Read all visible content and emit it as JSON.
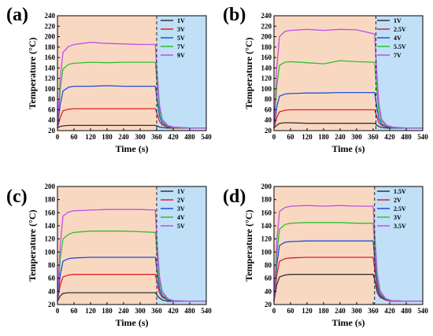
{
  "chart_data": [
    {
      "type": "line",
      "panel_label": "(a)",
      "xlabel": "Time (s)",
      "ylabel": "Temperature (°C)",
      "xlim": [
        0,
        540
      ],
      "ylim": [
        20,
        240
      ],
      "xticks": [
        0,
        60,
        120,
        180,
        240,
        300,
        360,
        420,
        480,
        540
      ],
      "yticks": [
        20,
        40,
        60,
        80,
        100,
        120,
        140,
        160,
        180,
        200,
        220,
        240
      ],
      "shaded_regions": [
        {
          "from": 0,
          "to": 360,
          "color": "#f9d8c2"
        },
        {
          "from": 360,
          "to": 540,
          "color": "#bfe0f7"
        }
      ],
      "divider_x": 360,
      "legend_position": "top-right",
      "series": [
        {
          "name": "1V",
          "color": "#333333",
          "x": [
            0,
            10,
            20,
            40,
            60,
            120,
            180,
            240,
            300,
            355,
            360,
            370,
            380,
            400,
            420,
            480,
            540
          ],
          "y": [
            25,
            28,
            29,
            30,
            30,
            30,
            30,
            30,
            30,
            30,
            29,
            27,
            26,
            25,
            25,
            25,
            25
          ]
        },
        {
          "name": "3V",
          "color": "#e02020",
          "x": [
            0,
            10,
            20,
            40,
            60,
            120,
            180,
            240,
            300,
            355,
            360,
            370,
            380,
            400,
            420,
            480,
            540
          ],
          "y": [
            25,
            45,
            58,
            61,
            62,
            62,
            62,
            62,
            62,
            62,
            55,
            38,
            31,
            27,
            25,
            25,
            25
          ]
        },
        {
          "name": "5V",
          "color": "#1f4fd8",
          "x": [
            0,
            10,
            20,
            40,
            60,
            120,
            180,
            240,
            300,
            355,
            360,
            370,
            380,
            400,
            420,
            480,
            540
          ],
          "y": [
            25,
            70,
            96,
            103,
            105,
            105,
            106,
            105,
            105,
            105,
            85,
            48,
            34,
            28,
            26,
            25,
            25
          ]
        },
        {
          "name": "7V",
          "color": "#2fbf2f",
          "x": [
            0,
            10,
            20,
            40,
            60,
            120,
            180,
            240,
            300,
            355,
            360,
            370,
            380,
            400,
            420,
            480,
            540
          ],
          "y": [
            25,
            100,
            138,
            147,
            149,
            151,
            150,
            151,
            151,
            151,
            118,
            60,
            38,
            29,
            26,
            25,
            25
          ]
        },
        {
          "name": "9V",
          "color": "#c050e8",
          "x": [
            0,
            10,
            20,
            40,
            60,
            120,
            180,
            240,
            300,
            355,
            360,
            370,
            380,
            400,
            420,
            480,
            540
          ],
          "y": [
            25,
            120,
            170,
            181,
            185,
            189,
            187,
            186,
            185,
            185,
            145,
            70,
            42,
            30,
            27,
            25,
            25
          ]
        }
      ]
    },
    {
      "type": "line",
      "panel_label": "(b)",
      "xlabel": "Time (s)",
      "ylabel": "Temperature (°C)",
      "xlim": [
        0,
        540
      ],
      "ylim": [
        20,
        240
      ],
      "xticks": [
        0,
        60,
        120,
        180,
        240,
        300,
        360,
        420,
        480,
        540
      ],
      "yticks": [
        20,
        40,
        60,
        80,
        100,
        120,
        140,
        160,
        180,
        200,
        220,
        240
      ],
      "shaded_regions": [
        {
          "from": 0,
          "to": 370,
          "color": "#f9d8c2"
        },
        {
          "from": 370,
          "to": 540,
          "color": "#bfe0f7"
        }
      ],
      "divider_x": 370,
      "legend_position": "top-right",
      "series": [
        {
          "name": "1V",
          "color": "#333333",
          "x": [
            0,
            10,
            20,
            40,
            60,
            120,
            180,
            240,
            300,
            365,
            370,
            380,
            390,
            410,
            430,
            480,
            540
          ],
          "y": [
            25,
            30,
            34,
            35,
            35,
            34,
            34,
            34,
            34,
            34,
            32,
            28,
            26,
            25,
            25,
            25,
            25
          ]
        },
        {
          "name": "2.5V",
          "color": "#e02020",
          "x": [
            0,
            10,
            20,
            40,
            60,
            120,
            180,
            240,
            300,
            365,
            370,
            380,
            390,
            410,
            430,
            480,
            540
          ],
          "y": [
            25,
            45,
            56,
            59,
            60,
            60,
            60,
            60,
            60,
            60,
            52,
            36,
            30,
            27,
            25,
            25,
            25
          ]
        },
        {
          "name": "4V",
          "color": "#1f4fd8",
          "x": [
            0,
            10,
            20,
            40,
            60,
            120,
            180,
            240,
            300,
            365,
            370,
            380,
            390,
            410,
            430,
            480,
            540
          ],
          "y": [
            25,
            65,
            86,
            90,
            91,
            92,
            92,
            93,
            93,
            93,
            76,
            44,
            33,
            27,
            25,
            25,
            25
          ]
        },
        {
          "name": "5.5V",
          "color": "#2fbf2f",
          "x": [
            0,
            10,
            20,
            40,
            60,
            120,
            180,
            240,
            300,
            365,
            370,
            380,
            390,
            410,
            430,
            480,
            540
          ],
          "y": [
            25,
            105,
            145,
            151,
            152,
            150,
            148,
            154,
            152,
            151,
            118,
            58,
            38,
            29,
            26,
            25,
            25
          ]
        },
        {
          "name": "7V",
          "color": "#c050e8",
          "x": [
            0,
            10,
            20,
            40,
            60,
            120,
            180,
            240,
            300,
            365,
            370,
            380,
            390,
            410,
            430,
            480,
            540
          ],
          "y": [
            25,
            140,
            200,
            210,
            212,
            214,
            212,
            214,
            213,
            205,
            160,
            75,
            42,
            30,
            27,
            25,
            25
          ]
        }
      ]
    },
    {
      "type": "line",
      "panel_label": "(c)",
      "xlabel": "Time (s)",
      "ylabel": "Temperature (°C)",
      "xlim": [
        0,
        540
      ],
      "ylim": [
        20,
        200
      ],
      "xticks": [
        0,
        60,
        120,
        180,
        240,
        300,
        360,
        420,
        480,
        540
      ],
      "yticks": [
        20,
        40,
        60,
        80,
        100,
        120,
        140,
        160,
        180,
        200
      ],
      "shaded_regions": [
        {
          "from": 0,
          "to": 360,
          "color": "#f9d8c2"
        },
        {
          "from": 360,
          "to": 540,
          "color": "#bfe0f7"
        }
      ],
      "divider_x": 360,
      "legend_position": "top-right",
      "series": [
        {
          "name": "1V",
          "color": "#333333",
          "x": [
            0,
            10,
            20,
            40,
            60,
            120,
            180,
            240,
            300,
            355,
            360,
            370,
            380,
            400,
            420,
            480,
            540
          ],
          "y": [
            25,
            33,
            37,
            38,
            38,
            38,
            38,
            38,
            38,
            38,
            35,
            30,
            27,
            25,
            25,
            25,
            25
          ]
        },
        {
          "name": "2V",
          "color": "#e02020",
          "x": [
            0,
            10,
            20,
            40,
            60,
            120,
            180,
            240,
            300,
            355,
            360,
            370,
            380,
            400,
            420,
            480,
            540
          ],
          "y": [
            25,
            50,
            62,
            65,
            66,
            66,
            66,
            66,
            66,
            66,
            57,
            38,
            31,
            27,
            25,
            25,
            25
          ]
        },
        {
          "name": "3V",
          "color": "#1f4fd8",
          "x": [
            0,
            10,
            20,
            40,
            60,
            120,
            180,
            240,
            300,
            355,
            360,
            370,
            380,
            400,
            420,
            480,
            540
          ],
          "y": [
            25,
            65,
            86,
            90,
            91,
            92,
            92,
            92,
            92,
            92,
            76,
            44,
            33,
            27,
            25,
            25,
            25
          ]
        },
        {
          "name": "4V",
          "color": "#2fbf2f",
          "x": [
            0,
            10,
            20,
            40,
            60,
            120,
            180,
            240,
            300,
            355,
            360,
            370,
            380,
            400,
            420,
            480,
            540
          ],
          "y": [
            25,
            90,
            120,
            127,
            130,
            132,
            132,
            132,
            131,
            130,
            102,
            54,
            36,
            28,
            26,
            25,
            25
          ]
        },
        {
          "name": "5V",
          "color": "#c050e8",
          "x": [
            0,
            10,
            20,
            40,
            60,
            120,
            180,
            240,
            300,
            355,
            360,
            370,
            380,
            400,
            420,
            480,
            540
          ],
          "y": [
            25,
            110,
            155,
            161,
            163,
            164,
            165,
            165,
            165,
            164,
            126,
            64,
            40,
            29,
            26,
            25,
            25
          ]
        }
      ]
    },
    {
      "type": "line",
      "panel_label": "(d)",
      "xlabel": "Time (s)",
      "ylabel": "Temperature (°C)",
      "xlim": [
        0,
        540
      ],
      "ylim": [
        20,
        200
      ],
      "xticks": [
        0,
        60,
        120,
        180,
        240,
        300,
        360,
        420,
        480,
        540
      ],
      "yticks": [
        20,
        40,
        60,
        80,
        100,
        120,
        140,
        160,
        180,
        200
      ],
      "shaded_regions": [
        {
          "from": 0,
          "to": 365,
          "color": "#f9d8c2"
        },
        {
          "from": 365,
          "to": 540,
          "color": "#bfe0f7"
        }
      ],
      "divider_x": 365,
      "legend_position": "top-right",
      "series": [
        {
          "name": "1.5V",
          "color": "#333333",
          "x": [
            0,
            10,
            20,
            40,
            60,
            120,
            180,
            240,
            300,
            360,
            365,
            375,
            385,
            405,
            425,
            480,
            540
          ],
          "y": [
            25,
            50,
            62,
            65,
            66,
            66,
            66,
            66,
            66,
            66,
            58,
            38,
            31,
            27,
            25,
            25,
            25
          ]
        },
        {
          "name": "2V",
          "color": "#e02020",
          "x": [
            0,
            10,
            20,
            40,
            60,
            120,
            180,
            240,
            300,
            360,
            365,
            375,
            385,
            405,
            425,
            480,
            540
          ],
          "y": [
            25,
            65,
            86,
            90,
            91,
            92,
            92,
            92,
            92,
            92,
            76,
            44,
            33,
            27,
            25,
            25,
            25
          ]
        },
        {
          "name": "2.5V",
          "color": "#1f4fd8",
          "x": [
            0,
            10,
            20,
            40,
            60,
            120,
            180,
            240,
            300,
            360,
            365,
            375,
            385,
            405,
            425,
            480,
            540
          ],
          "y": [
            25,
            80,
            110,
            115,
            116,
            117,
            117,
            117,
            117,
            117,
            92,
            50,
            35,
            28,
            26,
            25,
            25
          ]
        },
        {
          "name": "3V",
          "color": "#2fbf2f",
          "x": [
            0,
            10,
            20,
            40,
            60,
            120,
            180,
            240,
            300,
            360,
            365,
            375,
            385,
            405,
            425,
            480,
            540
          ],
          "y": [
            25,
            95,
            135,
            142,
            144,
            145,
            145,
            145,
            144,
            144,
            112,
            58,
            38,
            29,
            26,
            25,
            25
          ]
        },
        {
          "name": "3.5V",
          "color": "#c050e8",
          "x": [
            0,
            10,
            20,
            40,
            60,
            120,
            180,
            240,
            300,
            360,
            365,
            375,
            385,
            405,
            425,
            480,
            540
          ],
          "y": [
            25,
            115,
            162,
            168,
            170,
            171,
            170,
            171,
            170,
            170,
            130,
            66,
            41,
            29,
            26,
            25,
            25
          ]
        }
      ]
    }
  ]
}
